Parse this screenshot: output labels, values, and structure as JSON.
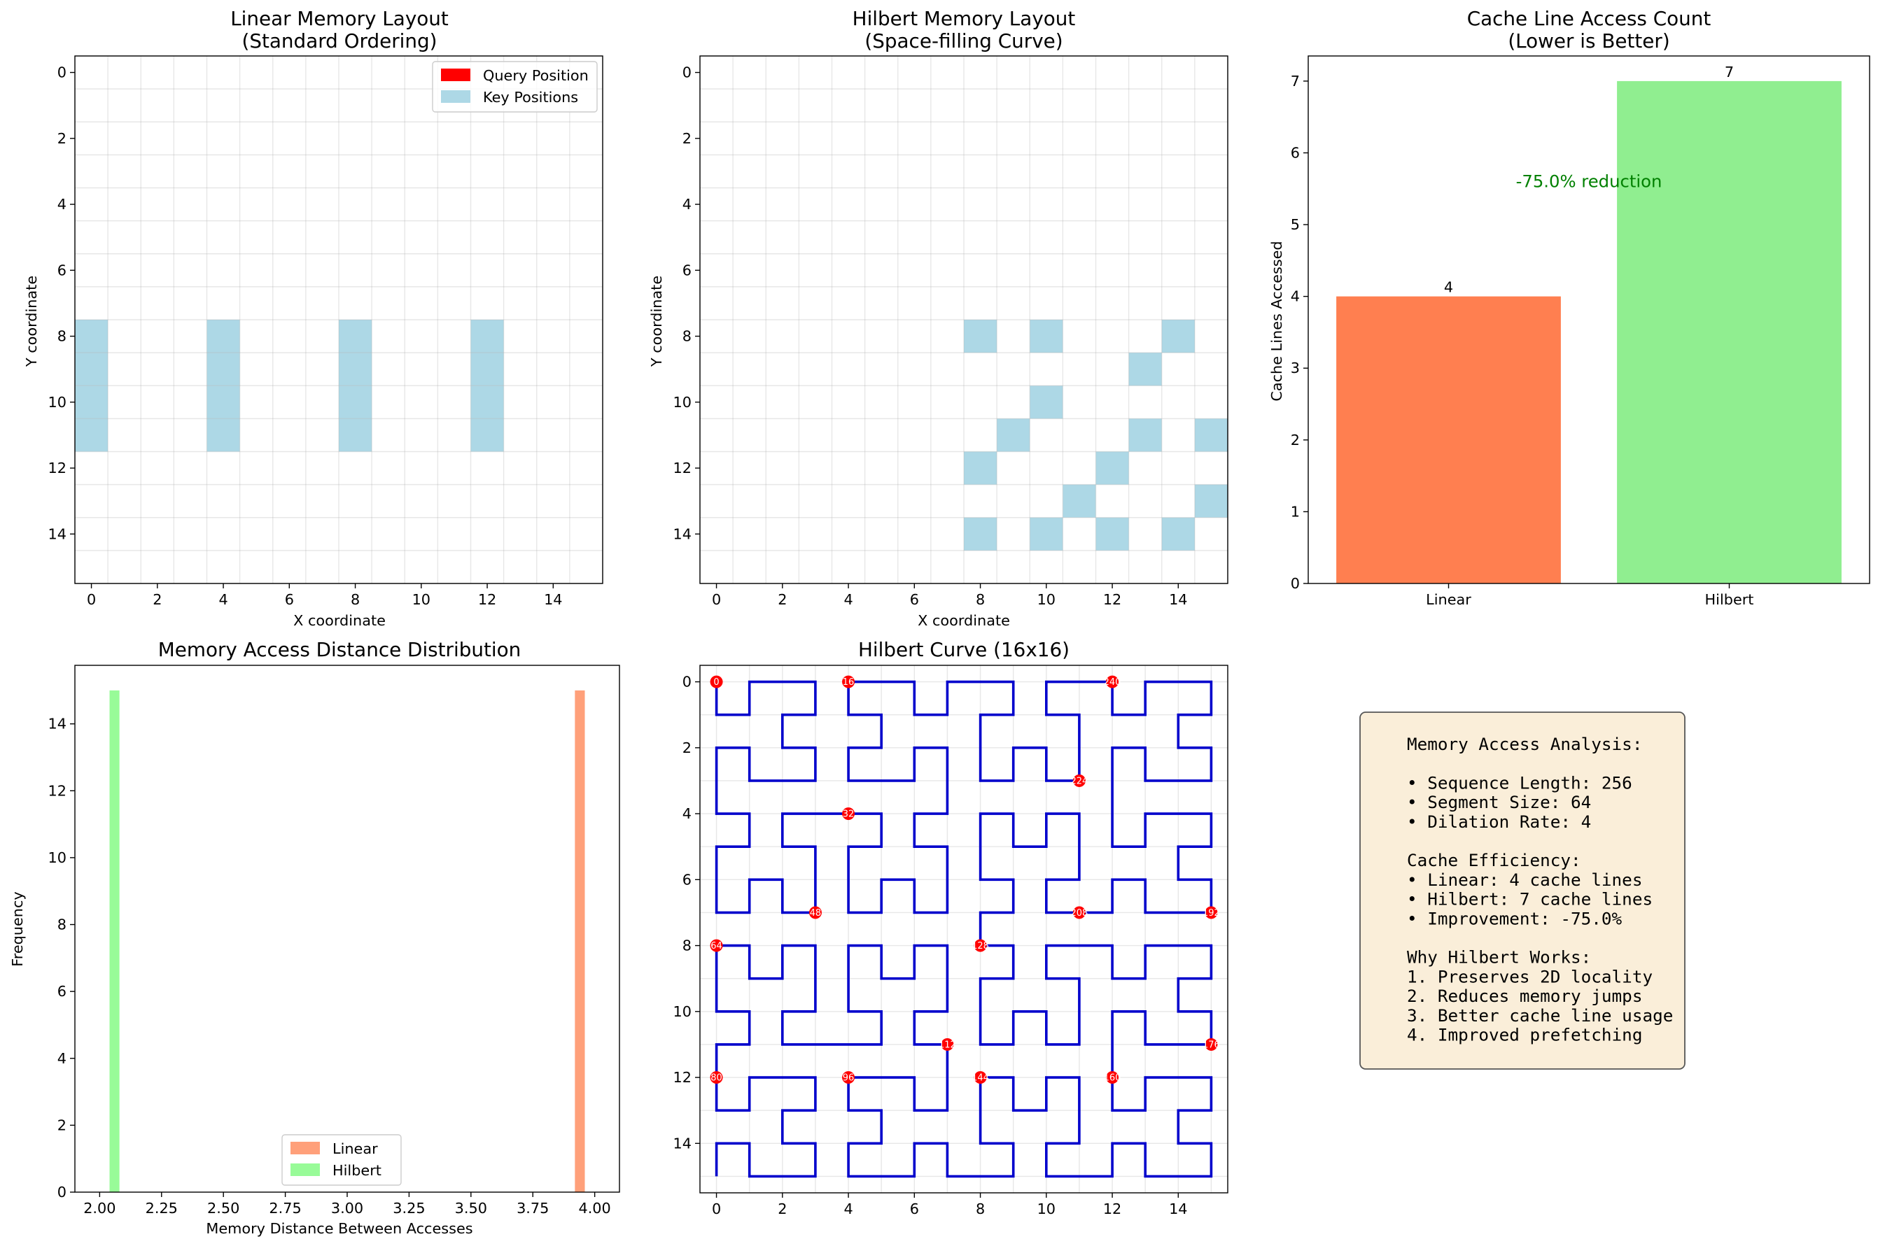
{
  "chart_data": [
    {
      "type": "heatmap",
      "title_lines": [
        "Linear Memory Layout",
        "(Standard Ordering)"
      ],
      "xlabel": "X coordinate",
      "ylabel": "Y coordinate",
      "xlim": [
        -0.5,
        15.5
      ],
      "ylim": [
        15.5,
        -0.5
      ],
      "xticks": [
        0,
        2,
        4,
        6,
        8,
        10,
        12,
        14
      ],
      "yticks": [
        0,
        2,
        4,
        6,
        8,
        10,
        12,
        14
      ],
      "grid": true,
      "legend_position": "upper right",
      "legend": [
        {
          "label": "Query Position",
          "color": "#ff0000"
        },
        {
          "label": "Key Positions",
          "color": "#add8e6"
        }
      ],
      "key_cells": [
        [
          0,
          8
        ],
        [
          0,
          9
        ],
        [
          0,
          10
        ],
        [
          0,
          11
        ],
        [
          4,
          8
        ],
        [
          4,
          9
        ],
        [
          4,
          10
        ],
        [
          4,
          11
        ],
        [
          8,
          8
        ],
        [
          8,
          9
        ],
        [
          8,
          10
        ],
        [
          8,
          11
        ],
        [
          12,
          8
        ],
        [
          12,
          9
        ],
        [
          12,
          10
        ],
        [
          12,
          11
        ]
      ]
    },
    {
      "type": "heatmap",
      "title_lines": [
        "Hilbert Memory Layout",
        "(Space-filling Curve)"
      ],
      "xlabel": "X coordinate",
      "ylabel": "Y coordinate",
      "xlim": [
        -0.5,
        15.5
      ],
      "ylim": [
        15.5,
        -0.5
      ],
      "xticks": [
        0,
        2,
        4,
        6,
        8,
        10,
        12,
        14
      ],
      "yticks": [
        0,
        2,
        4,
        6,
        8,
        10,
        12,
        14
      ],
      "grid": true,
      "key_cells": [
        [
          8,
          8
        ],
        [
          10,
          8
        ],
        [
          14,
          8
        ],
        [
          13,
          9
        ],
        [
          10,
          10
        ],
        [
          9,
          11
        ],
        [
          13,
          11
        ],
        [
          15,
          11
        ],
        [
          8,
          12
        ],
        [
          12,
          12
        ],
        [
          11,
          13
        ],
        [
          15,
          13
        ],
        [
          8,
          14
        ],
        [
          10,
          14
        ],
        [
          12,
          14
        ],
        [
          14,
          14
        ]
      ]
    },
    {
      "type": "bar",
      "title_lines": [
        "Cache Line Access Count",
        "(Lower is Better)"
      ],
      "ylabel": "Cache Lines Accessed",
      "categories": [
        "Linear",
        "Hilbert"
      ],
      "values": [
        4,
        7
      ],
      "colors": [
        "#ff7f50",
        "#90ee90"
      ],
      "ylim": [
        0,
        7.35
      ],
      "yticks": [
        0,
        1,
        2,
        3,
        4,
        5,
        6,
        7
      ],
      "annotation": {
        "text": "-75.0% reduction",
        "x": 0.5,
        "y": 5.6,
        "color": "#008000"
      }
    },
    {
      "type": "histogram",
      "title_lines": [
        "Memory Access Distance Distribution"
      ],
      "xlabel": "Memory Distance Between Accesses",
      "ylabel": "Frequency",
      "xlim": [
        1.9,
        4.1
      ],
      "ylim": [
        0,
        15.75
      ],
      "xticks": [
        "2.00",
        "2.25",
        "2.50",
        "2.75",
        "3.00",
        "3.25",
        "3.50",
        "3.75",
        "4.00"
      ],
      "xtick_values": [
        2.0,
        2.25,
        2.5,
        2.75,
        3.0,
        3.25,
        3.5,
        3.75,
        4.0
      ],
      "yticks": [
        0,
        2,
        4,
        6,
        8,
        10,
        12,
        14
      ],
      "legend_position": "lower center",
      "series": [
        {
          "name": "Linear",
          "color": "#ffa07a",
          "bins": [
            [
              3.92,
              3.96,
              15
            ]
          ]
        },
        {
          "name": "Hilbert",
          "color": "#98fb98",
          "bins": [
            [
              2.04,
              2.08,
              15
            ]
          ]
        }
      ]
    },
    {
      "type": "line",
      "title_lines": [
        "Hilbert Curve (16x16)"
      ],
      "xlim": [
        -0.5,
        15.5
      ],
      "ylim": [
        15.5,
        -0.5
      ],
      "xticks": [
        0,
        2,
        4,
        6,
        8,
        10,
        12,
        14
      ],
      "yticks": [
        0,
        2,
        4,
        6,
        8,
        10,
        12,
        14
      ],
      "grid": true,
      "line_color": "#0000cc",
      "marker_color": "#ff0000",
      "order": 16,
      "markers": [
        {
          "label": "0",
          "x": 0,
          "y": 0
        },
        {
          "label": "16",
          "x": 4,
          "y": 0
        },
        {
          "label": "240",
          "x": 12,
          "y": 0
        },
        {
          "label": "224",
          "x": 11,
          "y": 3
        },
        {
          "label": "32",
          "x": 4,
          "y": 4
        },
        {
          "label": "48",
          "x": 3,
          "y": 7
        },
        {
          "label": "208",
          "x": 11,
          "y": 7
        },
        {
          "label": "192",
          "x": 15,
          "y": 7
        },
        {
          "label": "64",
          "x": 0,
          "y": 8
        },
        {
          "label": "128",
          "x": 8,
          "y": 8
        },
        {
          "label": "112",
          "x": 7,
          "y": 11
        },
        {
          "label": "176",
          "x": 15,
          "y": 11
        },
        {
          "label": "80",
          "x": 0,
          "y": 12
        },
        {
          "label": "96",
          "x": 4,
          "y": 12
        },
        {
          "label": "144",
          "x": 8,
          "y": 12
        },
        {
          "label": "160",
          "x": 12,
          "y": 12
        }
      ]
    }
  ],
  "info_box": {
    "background": "#f5deb3",
    "lines": [
      "Memory Access Analysis:",
      "",
      "• Sequence Length: 256",
      "• Segment Size: 64",
      "• Dilation Rate: 4",
      "",
      "Cache Efficiency:",
      "• Linear: 4 cache lines",
      "• Hilbert: 7 cache lines",
      "• Improvement: -75.0%",
      "",
      "Why Hilbert Works:",
      "1. Preserves 2D locality",
      "2. Reduces memory jumps",
      "3. Better cache line usage",
      "4. Improved prefetching"
    ]
  }
}
